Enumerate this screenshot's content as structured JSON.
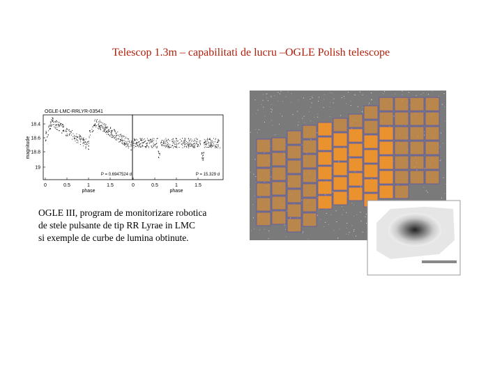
{
  "title": "Telescop 1.3m – capabilitati de lucru –OGLE Polish telescope",
  "light_curve": {
    "label": "OGLE-LMC-RRLYR-03541",
    "y_axis": "magnitude",
    "yticks": [
      "18.4",
      "18.6",
      "18.8",
      "19"
    ],
    "panels": [
      {
        "x_axis": "phase",
        "xticks": [
          "0",
          "0.5",
          "1",
          "1.5"
        ],
        "period": "P = 0.6947524 d"
      },
      {
        "x_axis": "phase",
        "xticks": [
          "0",
          "0.5",
          "1",
          "1.5"
        ],
        "period": "P = 15.329 d"
      }
    ]
  },
  "caption": [
    "OGLE III, program de monitorizare robotica",
    "de stele pulsante de tip RR Lyrae in LMC",
    "si exemple de curbe de lumina obtinute."
  ]
}
